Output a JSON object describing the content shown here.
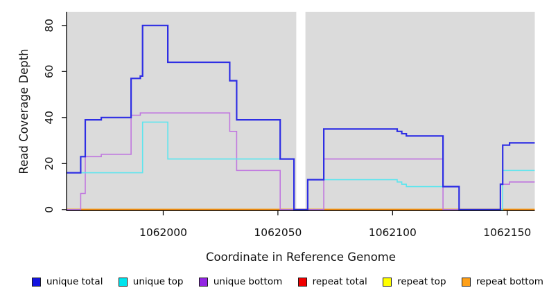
{
  "axes": {
    "y_label": "Read Coverage Depth",
    "x_label": "Coordinate in Reference Genome"
  },
  "legend": {
    "items": [
      {
        "label": "unique total",
        "color": "#1414E0"
      },
      {
        "label": "unique top",
        "color": "#00E5EE"
      },
      {
        "label": "unique bottom",
        "color": "#9326E3"
      },
      {
        "label": "repeat total",
        "color": "#F00000"
      },
      {
        "label": "repeat top",
        "color": "#FFFF00"
      },
      {
        "label": "repeat bottom",
        "color": "#FFA018"
      }
    ]
  },
  "chart_data": {
    "type": "line",
    "step": "hv",
    "title": "",
    "xlabel": "Coordinate in Reference Genome",
    "ylabel": "Read Coverage Depth",
    "xlim": [
      1061958,
      1062162
    ],
    "ylim": [
      0,
      86
    ],
    "x_ticks": [
      1062000,
      1062050,
      1062100,
      1062150
    ],
    "y_ticks": [
      0,
      20,
      40,
      60,
      80
    ],
    "grid": false,
    "legend_position": "bottom",
    "plot_background": "#DBDBDB",
    "gap_region": {
      "x_start": 1062058,
      "x_end": 1062062,
      "color": "#FFFFFF"
    },
    "series": [
      {
        "name": "repeat total",
        "color": "#D00000",
        "width": 2,
        "steps": [
          [
            1061958,
            0
          ]
        ]
      },
      {
        "name": "repeat top",
        "color": "#FFFF00",
        "width": 2,
        "steps": [
          [
            1061958,
            0
          ]
        ]
      },
      {
        "name": "repeat bottom",
        "color": "#FF9514",
        "width": 2,
        "steps": [
          [
            1061958,
            0
          ]
        ]
      },
      {
        "name": "unique bottom",
        "color": "#C077DF",
        "width": 1.6,
        "steps": [
          [
            1061958,
            0
          ],
          [
            1061964,
            7
          ],
          [
            1061966,
            23
          ],
          [
            1061973,
            24
          ],
          [
            1061986,
            41
          ],
          [
            1061990,
            42
          ],
          [
            1062029,
            34
          ],
          [
            1062032,
            17
          ],
          [
            1062051,
            0
          ],
          [
            1062070,
            22
          ],
          [
            1062122,
            0
          ],
          [
            1062147,
            11
          ],
          [
            1062151,
            12
          ]
        ]
      },
      {
        "name": "unique top",
        "color": "#5FE5EE",
        "width": 1.6,
        "steps": [
          [
            1061958,
            16
          ],
          [
            1061991,
            38
          ],
          [
            1062002,
            22
          ],
          [
            1062057,
            0
          ],
          [
            1062063,
            13
          ],
          [
            1062102,
            12
          ],
          [
            1062104,
            11
          ],
          [
            1062106,
            10
          ],
          [
            1062129,
            0
          ],
          [
            1062148,
            17
          ]
        ]
      },
      {
        "name": "unique total",
        "color": "#2E2EE4",
        "width": 2.2,
        "steps": [
          [
            1061958,
            16
          ],
          [
            1061964,
            23
          ],
          [
            1061966,
            39
          ],
          [
            1061973,
            40
          ],
          [
            1061986,
            57
          ],
          [
            1061990,
            58
          ],
          [
            1061991,
            80
          ],
          [
            1062002,
            64
          ],
          [
            1062029,
            56
          ],
          [
            1062032,
            39
          ],
          [
            1062051,
            22
          ],
          [
            1062057,
            0
          ],
          [
            1062063,
            13
          ],
          [
            1062070,
            35
          ],
          [
            1062102,
            34
          ],
          [
            1062104,
            33
          ],
          [
            1062106,
            32
          ],
          [
            1062122,
            10
          ],
          [
            1062129,
            0
          ],
          [
            1062147,
            11
          ],
          [
            1062148,
            28
          ],
          [
            1062151,
            29
          ]
        ]
      }
    ]
  }
}
